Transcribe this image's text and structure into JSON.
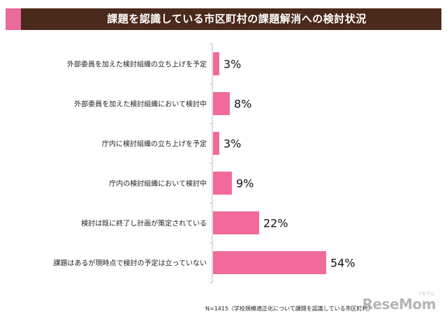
{
  "header": {
    "title": "課題を認識している市区町村の課題解消への検討状況",
    "accent_color": "#ec6a9a",
    "background_color": "#4a2a1a"
  },
  "chart_data": {
    "type": "bar",
    "orientation": "horizontal",
    "categories": [
      "外部委員を加えた検討組織の立ち上げを予定",
      "外部委員を加えた検討組織において検討中",
      "庁内に検討組織の立ち上げを予定",
      "庁内の検討組織において検討中",
      "検討は既に終了し計画が策定されている",
      "課題はあるが現時点で検討の予定は立っていない"
    ],
    "values": [
      3,
      8,
      3,
      9,
      22,
      54
    ],
    "value_labels": [
      "3%",
      "8%",
      "3%",
      "9%",
      "22%",
      "54%"
    ],
    "unit": "%",
    "xlim": [
      0,
      100
    ],
    "bar_color": "#f06a9b",
    "grid": false,
    "legend": "none"
  },
  "footnote": "N=1415（学校規模適正化について課題を認識している市区町村）",
  "brand": {
    "name": "ReseMom",
    "ruby": "リセマム"
  }
}
